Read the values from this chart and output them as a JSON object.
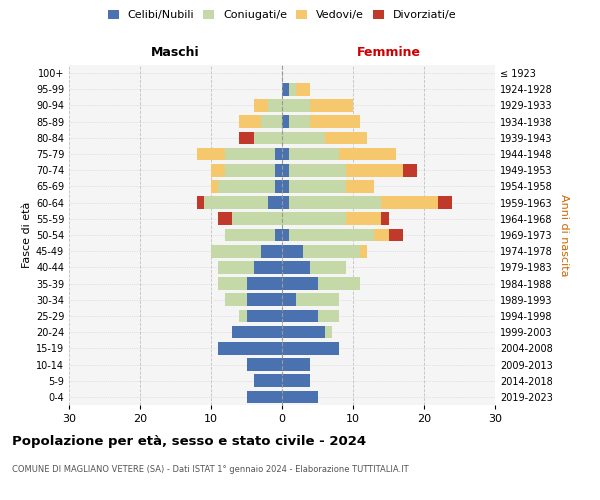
{
  "age_groups": [
    "0-4",
    "5-9",
    "10-14",
    "15-19",
    "20-24",
    "25-29",
    "30-34",
    "35-39",
    "40-44",
    "45-49",
    "50-54",
    "55-59",
    "60-64",
    "65-69",
    "70-74",
    "75-79",
    "80-84",
    "85-89",
    "90-94",
    "95-99",
    "100+"
  ],
  "birth_years": [
    "2019-2023",
    "2014-2018",
    "2009-2013",
    "2004-2008",
    "1999-2003",
    "1994-1998",
    "1989-1993",
    "1984-1988",
    "1979-1983",
    "1974-1978",
    "1969-1973",
    "1964-1968",
    "1959-1963",
    "1954-1958",
    "1949-1953",
    "1944-1948",
    "1939-1943",
    "1934-1938",
    "1929-1933",
    "1924-1928",
    "≤ 1923"
  ],
  "colors": {
    "celibi": "#4a72b0",
    "coniugati": "#c5d8a8",
    "vedovi": "#f5c86e",
    "divorziati": "#c0392b"
  },
  "males": {
    "celibi": [
      5,
      4,
      5,
      9,
      7,
      5,
      5,
      5,
      4,
      3,
      1,
      0,
      2,
      1,
      1,
      1,
      0,
      0,
      0,
      0,
      0
    ],
    "coniugati": [
      0,
      0,
      0,
      0,
      0,
      1,
      3,
      4,
      5,
      7,
      7,
      7,
      9,
      8,
      7,
      7,
      4,
      3,
      2,
      0,
      0
    ],
    "vedovi": [
      0,
      0,
      0,
      0,
      0,
      0,
      0,
      0,
      0,
      0,
      0,
      0,
      0,
      1,
      2,
      4,
      0,
      3,
      2,
      0,
      0
    ],
    "divorziati": [
      0,
      0,
      0,
      0,
      0,
      0,
      0,
      0,
      0,
      0,
      0,
      2,
      1,
      0,
      0,
      0,
      2,
      0,
      0,
      0,
      0
    ]
  },
  "females": {
    "nubili": [
      5,
      4,
      4,
      8,
      6,
      5,
      2,
      5,
      4,
      3,
      1,
      0,
      1,
      1,
      1,
      1,
      0,
      1,
      0,
      1,
      0
    ],
    "coniugate": [
      0,
      0,
      0,
      0,
      1,
      3,
      6,
      6,
      5,
      8,
      12,
      9,
      13,
      8,
      8,
      7,
      6,
      3,
      4,
      1,
      0
    ],
    "vedove": [
      0,
      0,
      0,
      0,
      0,
      0,
      0,
      0,
      0,
      1,
      2,
      5,
      8,
      4,
      8,
      8,
      6,
      7,
      6,
      2,
      0
    ],
    "divorziate": [
      0,
      0,
      0,
      0,
      0,
      0,
      0,
      0,
      0,
      0,
      2,
      1,
      2,
      0,
      2,
      0,
      0,
      0,
      0,
      0,
      0
    ]
  },
  "xlim": 30,
  "title": "Popolazione per età, sesso e stato civile - 2024",
  "subtitle": "COMUNE DI MAGLIANO VETERE (SA) - Dati ISTAT 1° gennaio 2024 - Elaborazione TUTTITALIA.IT",
  "ylabel_left": "Fasce di età",
  "ylabel_right": "Anni di nascita",
  "xlabel_left": "Maschi",
  "xlabel_right": "Femmine",
  "bg_color": "#f5f5f5",
  "grid_color": "#cccccc"
}
